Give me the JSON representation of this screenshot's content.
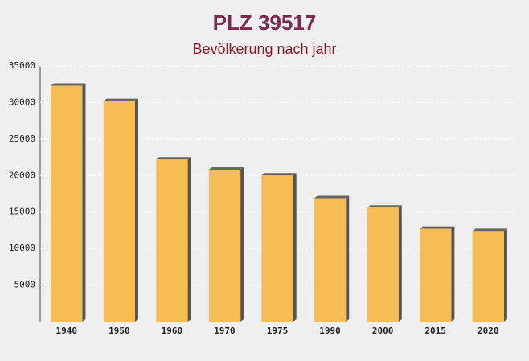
{
  "chart_data": {
    "type": "bar",
    "title": "PLZ 39517",
    "subtitle": "Bevölkerung nach jahr",
    "categories": [
      "1940",
      "1950",
      "1960",
      "1970",
      "1975",
      "1990",
      "2000",
      "2015",
      "2020"
    ],
    "values": [
      32300,
      30200,
      22200,
      20800,
      20000,
      16900,
      15600,
      12700,
      12400
    ],
    "color": "#f7bd55",
    "ylim": [
      0,
      35000
    ],
    "yticks": [
      5000,
      10000,
      15000,
      20000,
      25000,
      30000,
      35000
    ],
    "grid": true
  }
}
